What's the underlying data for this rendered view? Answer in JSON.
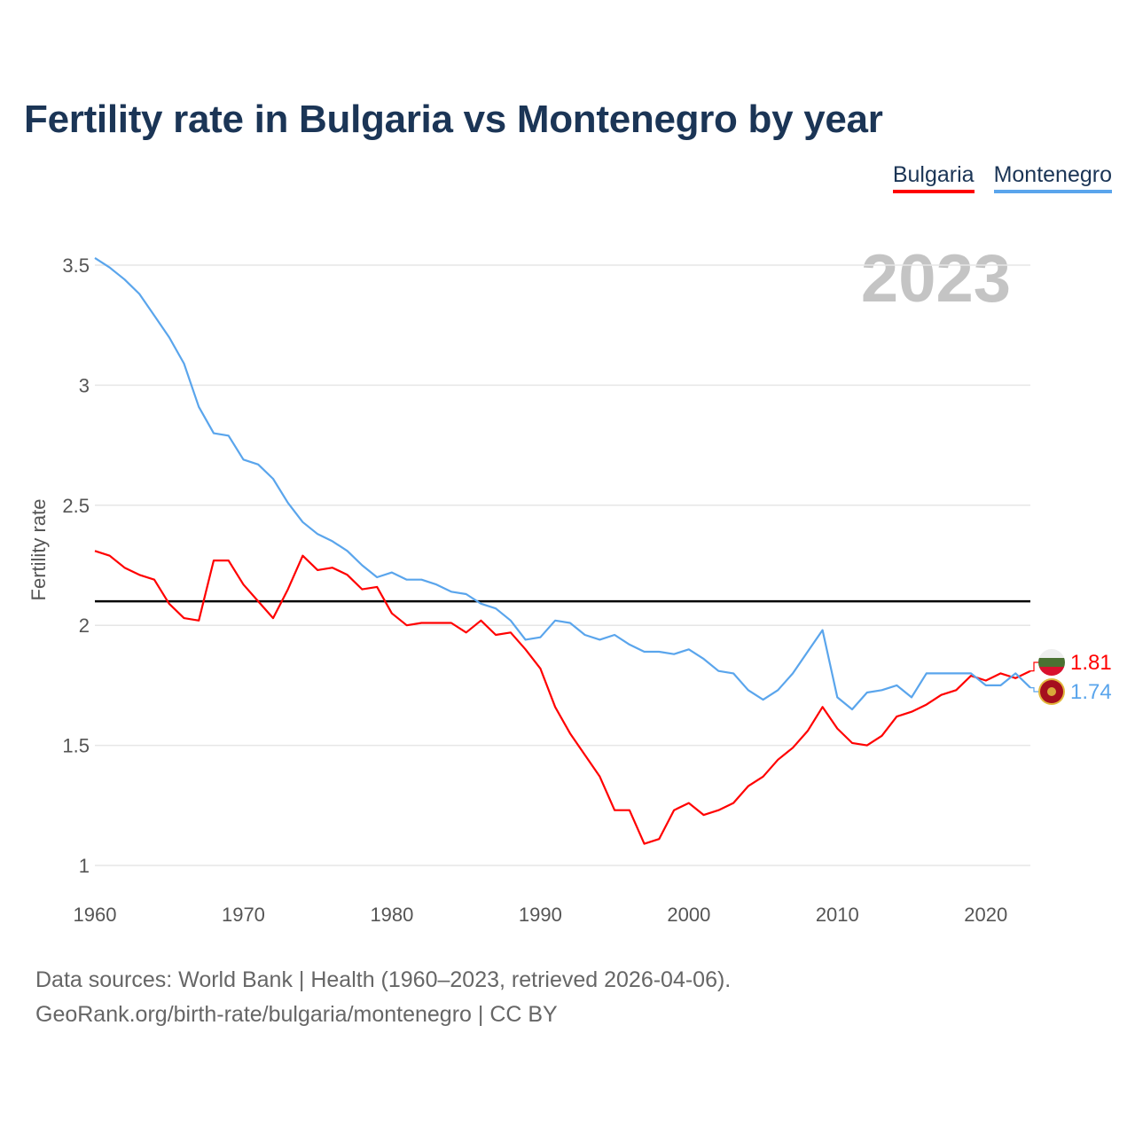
{
  "title": "Fertility rate in Bulgaria vs Montenegro by year",
  "legend": [
    {
      "name": "Bulgaria",
      "color": "#ff0000"
    },
    {
      "name": "Montenegro",
      "color": "#5aa5ec"
    }
  ],
  "year_watermark": "2023",
  "footer": {
    "line1": "Data sources: World Bank | Health (1960–2023, retrieved 2026-04-06).",
    "line2": "GeoRank.org/birth-rate/bulgaria/montenegro | CC BY"
  },
  "chart_data": {
    "type": "line",
    "title": "Fertility rate in Bulgaria vs Montenegro by year",
    "xlabel": "",
    "ylabel": "Fertility rate",
    "xlim": [
      1960,
      2023
    ],
    "ylim": [
      1,
      3.5
    ],
    "yticks": [
      "1",
      "1.5",
      "2",
      "2.5",
      "3",
      "3.5"
    ],
    "ytick_values": [
      1,
      1.5,
      2,
      2.5,
      3,
      3.5
    ],
    "xticks": [
      "1960",
      "1970",
      "1980",
      "1990",
      "2000",
      "2010",
      "2020"
    ],
    "xtick_values": [
      1960,
      1970,
      1980,
      1990,
      2000,
      2010,
      2020
    ],
    "grid": true,
    "legend_position": "top-right",
    "reference_line": {
      "y": 2.1,
      "color": "#000000"
    },
    "x_start": 1960,
    "series": [
      {
        "name": "Bulgaria",
        "color": "#ff0000",
        "end_label": "1.81",
        "values": [
          2.31,
          2.29,
          2.24,
          2.21,
          2.19,
          2.09,
          2.03,
          2.02,
          2.27,
          2.27,
          2.17,
          2.1,
          2.03,
          2.15,
          2.29,
          2.23,
          2.24,
          2.21,
          2.15,
          2.16,
          2.05,
          2.0,
          2.01,
          2.01,
          2.01,
          1.97,
          2.02,
          1.96,
          1.97,
          1.9,
          1.82,
          1.66,
          1.55,
          1.46,
          1.37,
          1.23,
          1.23,
          1.09,
          1.11,
          1.23,
          1.26,
          1.21,
          1.23,
          1.26,
          1.33,
          1.37,
          1.44,
          1.49,
          1.56,
          1.66,
          1.57,
          1.51,
          1.5,
          1.54,
          1.62,
          1.64,
          1.67,
          1.71,
          1.73,
          1.79,
          1.77,
          1.8,
          1.78,
          1.81
        ]
      },
      {
        "name": "Montenegro",
        "color": "#5aa5ec",
        "end_label": "1.74",
        "values": [
          3.53,
          3.49,
          3.44,
          3.38,
          3.29,
          3.2,
          3.09,
          2.91,
          2.8,
          2.79,
          2.69,
          2.67,
          2.61,
          2.51,
          2.43,
          2.38,
          2.35,
          2.31,
          2.25,
          2.2,
          2.22,
          2.19,
          2.19,
          2.17,
          2.14,
          2.13,
          2.09,
          2.07,
          2.02,
          1.94,
          1.95,
          2.02,
          2.01,
          1.96,
          1.94,
          1.96,
          1.92,
          1.89,
          1.89,
          1.88,
          1.9,
          1.86,
          1.81,
          1.8,
          1.73,
          1.69,
          1.73,
          1.8,
          1.89,
          1.98,
          1.7,
          1.65,
          1.72,
          1.73,
          1.75,
          1.7,
          1.8,
          1.8,
          1.8,
          1.8,
          1.75,
          1.75,
          1.8,
          1.74
        ]
      }
    ]
  }
}
